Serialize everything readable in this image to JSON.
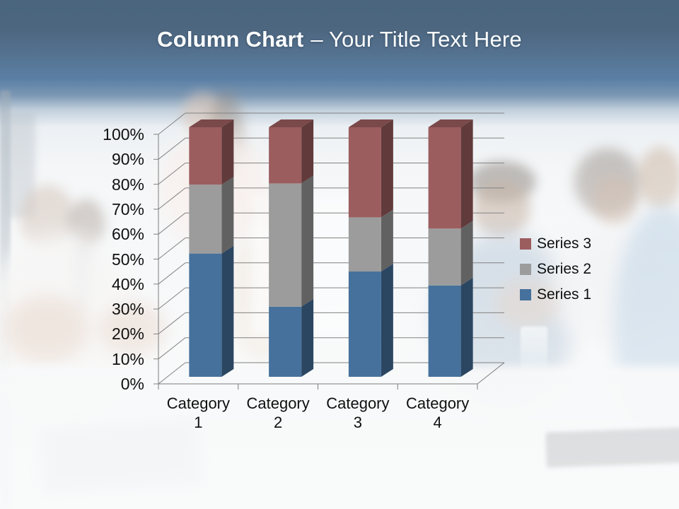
{
  "slide": {
    "title": {
      "bold": "Column Chart",
      "rest": "– Your Title Text Here"
    }
  },
  "chart_data": {
    "type": "bar",
    "subtype": "3d-100-percent-stacked-column",
    "title": "",
    "categories": [
      "Category 1",
      "Category 2",
      "Category 3",
      "Category 4"
    ],
    "series": [
      {
        "name": "Series 1",
        "color": "#45719c",
        "stack_percent": [
          49.4,
          28.1,
          42.2,
          36.6
        ]
      },
      {
        "name": "Series 2",
        "color": "#9c9c9c",
        "stack_percent": [
          27.6,
          49.4,
          21.7,
          22.8
        ]
      },
      {
        "name": "Series 3",
        "color": "#9c5d5f",
        "stack_percent": [
          23.0,
          22.5,
          36.1,
          40.6
        ]
      }
    ],
    "y_axis": {
      "min": 0,
      "max": 100,
      "ticks": [
        "0%",
        "10%",
        "20%",
        "30%",
        "40%",
        "50%",
        "60%",
        "70%",
        "80%",
        "90%",
        "100%"
      ]
    },
    "x_axis": {
      "tick_count": 5
    },
    "legend": {
      "position": "middle-right",
      "order_top_to_bottom": [
        "Series 3",
        "Series 2",
        "Series 1"
      ]
    },
    "grid": true,
    "colors": {
      "grid": "#828282",
      "axis": "#7d7d7d",
      "label_text": "#101010"
    }
  }
}
